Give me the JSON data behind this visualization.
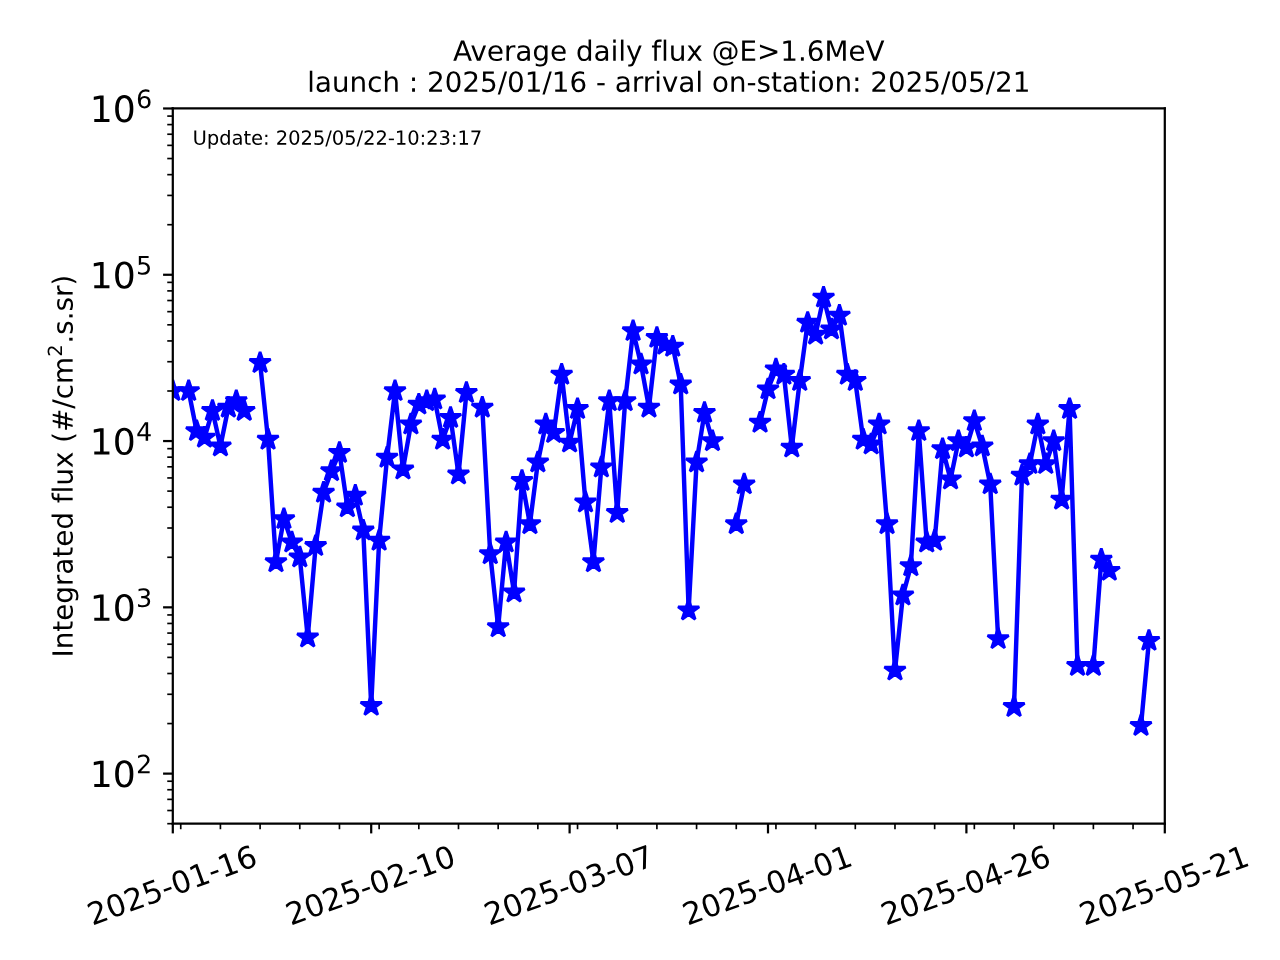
{
  "chart_data": {
    "type": "line",
    "title": "Average daily flux @E>1.6MeV\nlaunch : 2025/01/16 - arrival on-station: 2025/05/21",
    "ylabel": "Integrated flux (#/cm$^{2}$.s.sr)",
    "annotations": [
      "Update: 2025/05/22-10:23:17"
    ],
    "x": [
      "2025-01-16",
      "2025-01-17",
      "2025-01-18",
      "2025-01-19",
      "2025-01-20",
      "2025-01-21",
      "2025-01-22",
      "2025-01-23",
      "2025-01-24",
      "2025-01-25",
      "2025-01-26",
      "2025-01-27",
      "2025-01-28",
      "2025-01-29",
      "2025-01-30",
      "2025-01-31",
      "2025-02-01",
      "2025-02-02",
      "2025-02-03",
      "2025-02-04",
      "2025-02-05",
      "2025-02-06",
      "2025-02-07",
      "2025-02-08",
      "2025-02-09",
      "2025-02-10",
      "2025-02-11",
      "2025-02-12",
      "2025-02-13",
      "2025-02-14",
      "2025-02-15",
      "2025-02-16",
      "2025-02-17",
      "2025-02-18",
      "2025-02-19",
      "2025-02-20",
      "2025-02-21",
      "2025-02-22",
      "2025-02-23",
      "2025-02-24",
      "2025-02-25",
      "2025-02-26",
      "2025-02-27",
      "2025-02-28",
      "2025-03-01",
      "2025-03-02",
      "2025-03-03",
      "2025-03-04",
      "2025-03-05",
      "2025-03-06",
      "2025-03-07",
      "2025-03-08",
      "2025-03-09",
      "2025-03-10",
      "2025-03-11",
      "2025-03-12",
      "2025-03-13",
      "2025-03-14",
      "2025-03-15",
      "2025-03-16",
      "2025-03-17",
      "2025-03-18",
      "2025-03-19",
      "2025-03-20",
      "2025-03-21",
      "2025-03-22",
      "2025-03-23",
      "2025-03-24",
      "2025-03-25",
      "2025-03-26",
      "2025-03-27",
      "2025-03-28",
      "2025-03-29",
      "2025-03-30",
      "2025-03-31",
      "2025-04-01",
      "2025-04-02",
      "2025-04-03",
      "2025-04-04",
      "2025-04-05",
      "2025-04-06",
      "2025-04-07",
      "2025-04-08",
      "2025-04-09",
      "2025-04-10",
      "2025-04-11",
      "2025-04-12",
      "2025-04-13",
      "2025-04-14",
      "2025-04-15",
      "2025-04-16",
      "2025-04-17",
      "2025-04-18",
      "2025-04-19",
      "2025-04-20",
      "2025-04-21",
      "2025-04-22",
      "2025-04-23",
      "2025-04-24",
      "2025-04-25",
      "2025-04-26",
      "2025-04-27",
      "2025-04-28",
      "2025-04-29",
      "2025-04-30",
      "2025-05-01",
      "2025-05-02",
      "2025-05-03",
      "2025-05-04",
      "2025-05-05",
      "2025-05-06",
      "2025-05-07",
      "2025-05-08",
      "2025-05-09",
      "2025-05-10",
      "2025-05-11",
      "2025-05-12",
      "2025-05-13",
      "2025-05-14",
      "2025-05-15",
      "2025-05-16",
      "2025-05-17",
      "2025-05-18",
      "2025-05-19"
    ],
    "series": [
      {
        "color": "#0000ff",
        "values": [
          20000,
          null,
          20000,
          11500,
          10500,
          15200,
          9300,
          15900,
          17400,
          15200,
          null,
          29500,
          10200,
          1870,
          3400,
          2460,
          2000,
          660,
          2340,
          4900,
          6600,
          8500,
          4000,
          4700,
          2900,
          256,
          2520,
          7950,
          20000,
          6750,
          12600,
          16600,
          17400,
          17800,
          10200,
          13800,
          6300,
          19500,
          null,
          15900,
          2090,
          760,
          2460,
          1230,
          5770,
          3170,
          7450,
          12600,
          11200,
          25100,
          9800,
          15600,
          4280,
          1870,
          6950,
          17400,
          3700,
          17400,
          45900,
          28900,
          15900,
          41800,
          38000,
          37000,
          21900,
          960,
          7450,
          14800,
          10000,
          null,
          null,
          3170,
          5500,
          null,
          12900,
          20500,
          27000,
          25100,
          9150,
          23000,
          51500,
          43700,
          73000,
          47000,
          56800,
          25100,
          23000,
          10200,
          9560,
          12600,
          3170,
          417,
          1180,
          1770,
          11500,
          2460,
          2520,
          8950,
          5880,
          10000,
          9150,
          13200,
          9300,
          5500,
          645,
          null,
          252,
          6200,
          7280,
          12600,
          7280,
          10000,
          4450,
          15600,
          445,
          null,
          445,
          1940,
          1660,
          null,
          null,
          null,
          194,
          630
        ]
      }
    ],
    "log": true,
    "ylim": [
      50,
      1000000
    ],
    "yticks": [
      {
        "value": 100,
        "label": "10$^{2}$"
      },
      {
        "value": 1000,
        "label": "10$^{3}$"
      },
      {
        "value": 10000,
        "label": "10$^{4}$"
      },
      {
        "value": 100000,
        "label": "10$^{5}$"
      },
      {
        "value": 1000000,
        "label": "10$^{6}$"
      }
    ],
    "xlim": [
      "2025-01-16",
      "2025-05-21"
    ],
    "xticks": [
      "2025-01-16",
      "2025-02-10",
      "2025-03-07",
      "2025-04-01",
      "2025-04-26",
      "2025-05-21"
    ],
    "marker": "star",
    "line_style": "solid",
    "grid": false,
    "legend": false
  }
}
